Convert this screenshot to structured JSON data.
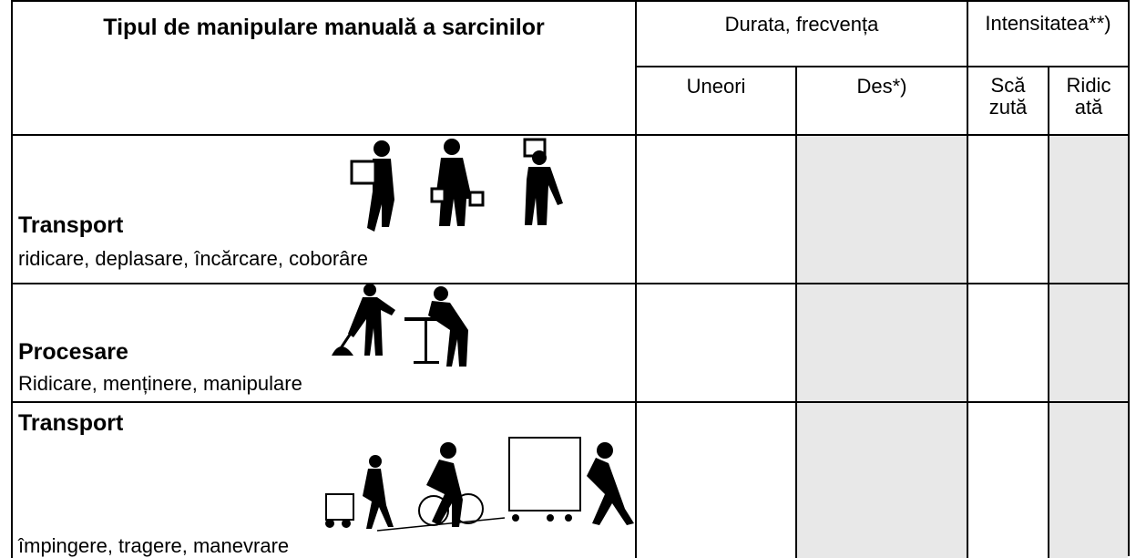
{
  "table": {
    "header": {
      "title": "Tipul de manipulare manuală a sarcinilor",
      "durata": "Durata, frecvența",
      "intensitate": "Intensitatea**)"
    },
    "subheaders": [
      "Uneori",
      "Des*)",
      "Scăzută",
      "Ridicată"
    ],
    "rows": [
      {
        "title": "Transport",
        "subtitle": "ridicare, deplasare, încărcare, coborâre"
      },
      {
        "title": "Procesare",
        "subtitle": "Ridicare, menținere, manipulare"
      },
      {
        "title": "Transport",
        "subtitle": "împingere, tragere, manevrare"
      }
    ]
  }
}
